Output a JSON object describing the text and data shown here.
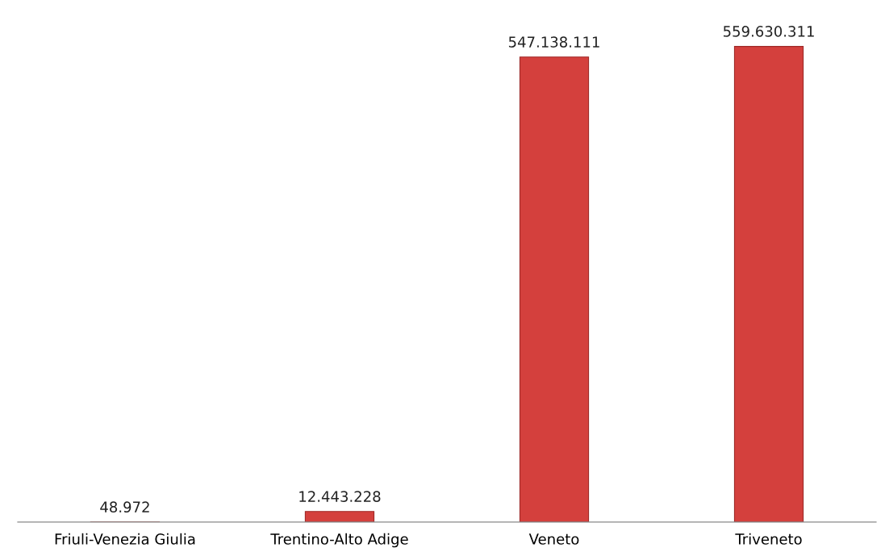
{
  "chart_data": {
    "type": "bar",
    "categories": [
      "Friuli-Venezia Giulia",
      "Trentino-Alto Adige",
      "Veneto",
      "Triveneto"
    ],
    "values": [
      48972,
      12443228,
      547138111,
      559630311
    ],
    "value_labels": [
      "48.972",
      "12.443.228",
      "547.138.111",
      "559.630.311"
    ],
    "color": "#d4403d",
    "grid": false,
    "legend": false
  }
}
